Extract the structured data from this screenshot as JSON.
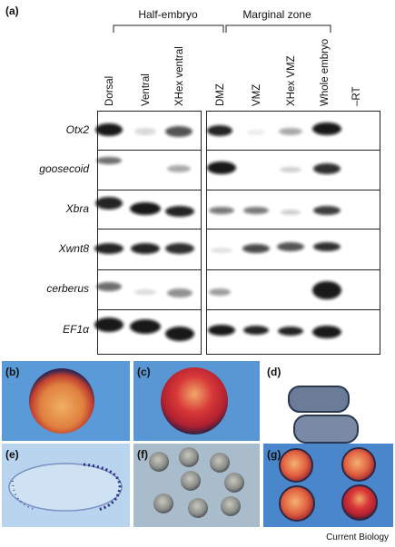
{
  "panel_a": "(a)",
  "groups": [
    "Half-embryo",
    "Marginal zone"
  ],
  "lanes": [
    "Dorsal",
    "Ventral",
    "XHex ventral",
    "DMZ",
    "VMZ",
    "XHex VMZ",
    "Whole embryo",
    "–RT"
  ],
  "genes": [
    "Otx2",
    "goosecoid",
    "Xbra",
    "Xwnt8",
    "cerberus",
    "EF1α"
  ],
  "panels": [
    "(b)",
    "(c)",
    "(d)",
    "(e)",
    "(f)",
    "(g)"
  ],
  "footer": "Current Biology"
}
